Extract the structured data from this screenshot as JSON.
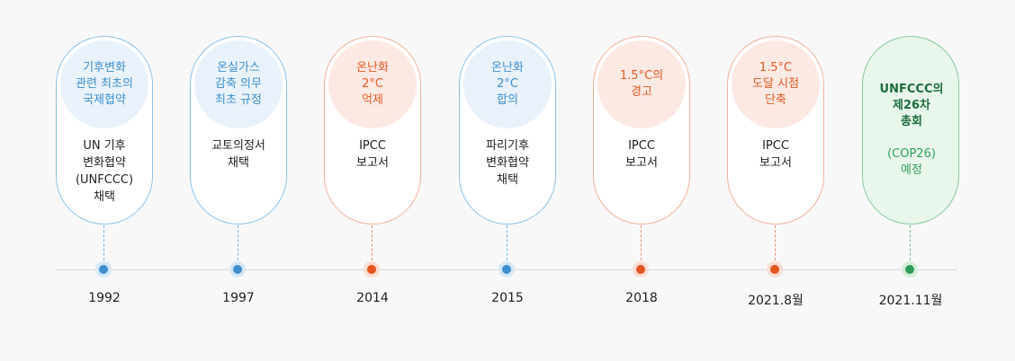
{
  "events": [
    {
      "bubble": "기후변화\n관련 최초의\n국제협약",
      "desc": "UN 기후\n변화협약\n(UNFCCC)\n채택",
      "year": "1992",
      "theme": "blue"
    },
    {
      "bubble": "온실가스\n감축 의무\n최초 규정",
      "desc": "교토의정서\n채택",
      "year": "1997",
      "theme": "blue"
    },
    {
      "bubble": "온난화\n2°C\n억제",
      "desc": "IPCC\n보고서",
      "year": "2014",
      "theme": "orange"
    },
    {
      "bubble": "온난화\n2°C\n합의",
      "desc": "파리기후\n변화협약\n채택",
      "year": "2015",
      "theme": "blue"
    },
    {
      "bubble": "1.5°C의\n경고",
      "desc": "IPCC\n보고서",
      "year": "2018",
      "theme": "orange"
    },
    {
      "bubble": "1.5°C\n도달 시점\n단축",
      "desc": "IPCC\n보고서",
      "year": "2021.8월",
      "theme": "orange"
    },
    {
      "bubble": "UNFCCC의\n제26차\n총회",
      "desc": "(COP26)\n예정",
      "year": "2021.11월",
      "theme": "green"
    }
  ],
  "colors": {
    "blue": "#3e8fd0",
    "orange": "#e5531f",
    "green": "#2f9b58"
  }
}
